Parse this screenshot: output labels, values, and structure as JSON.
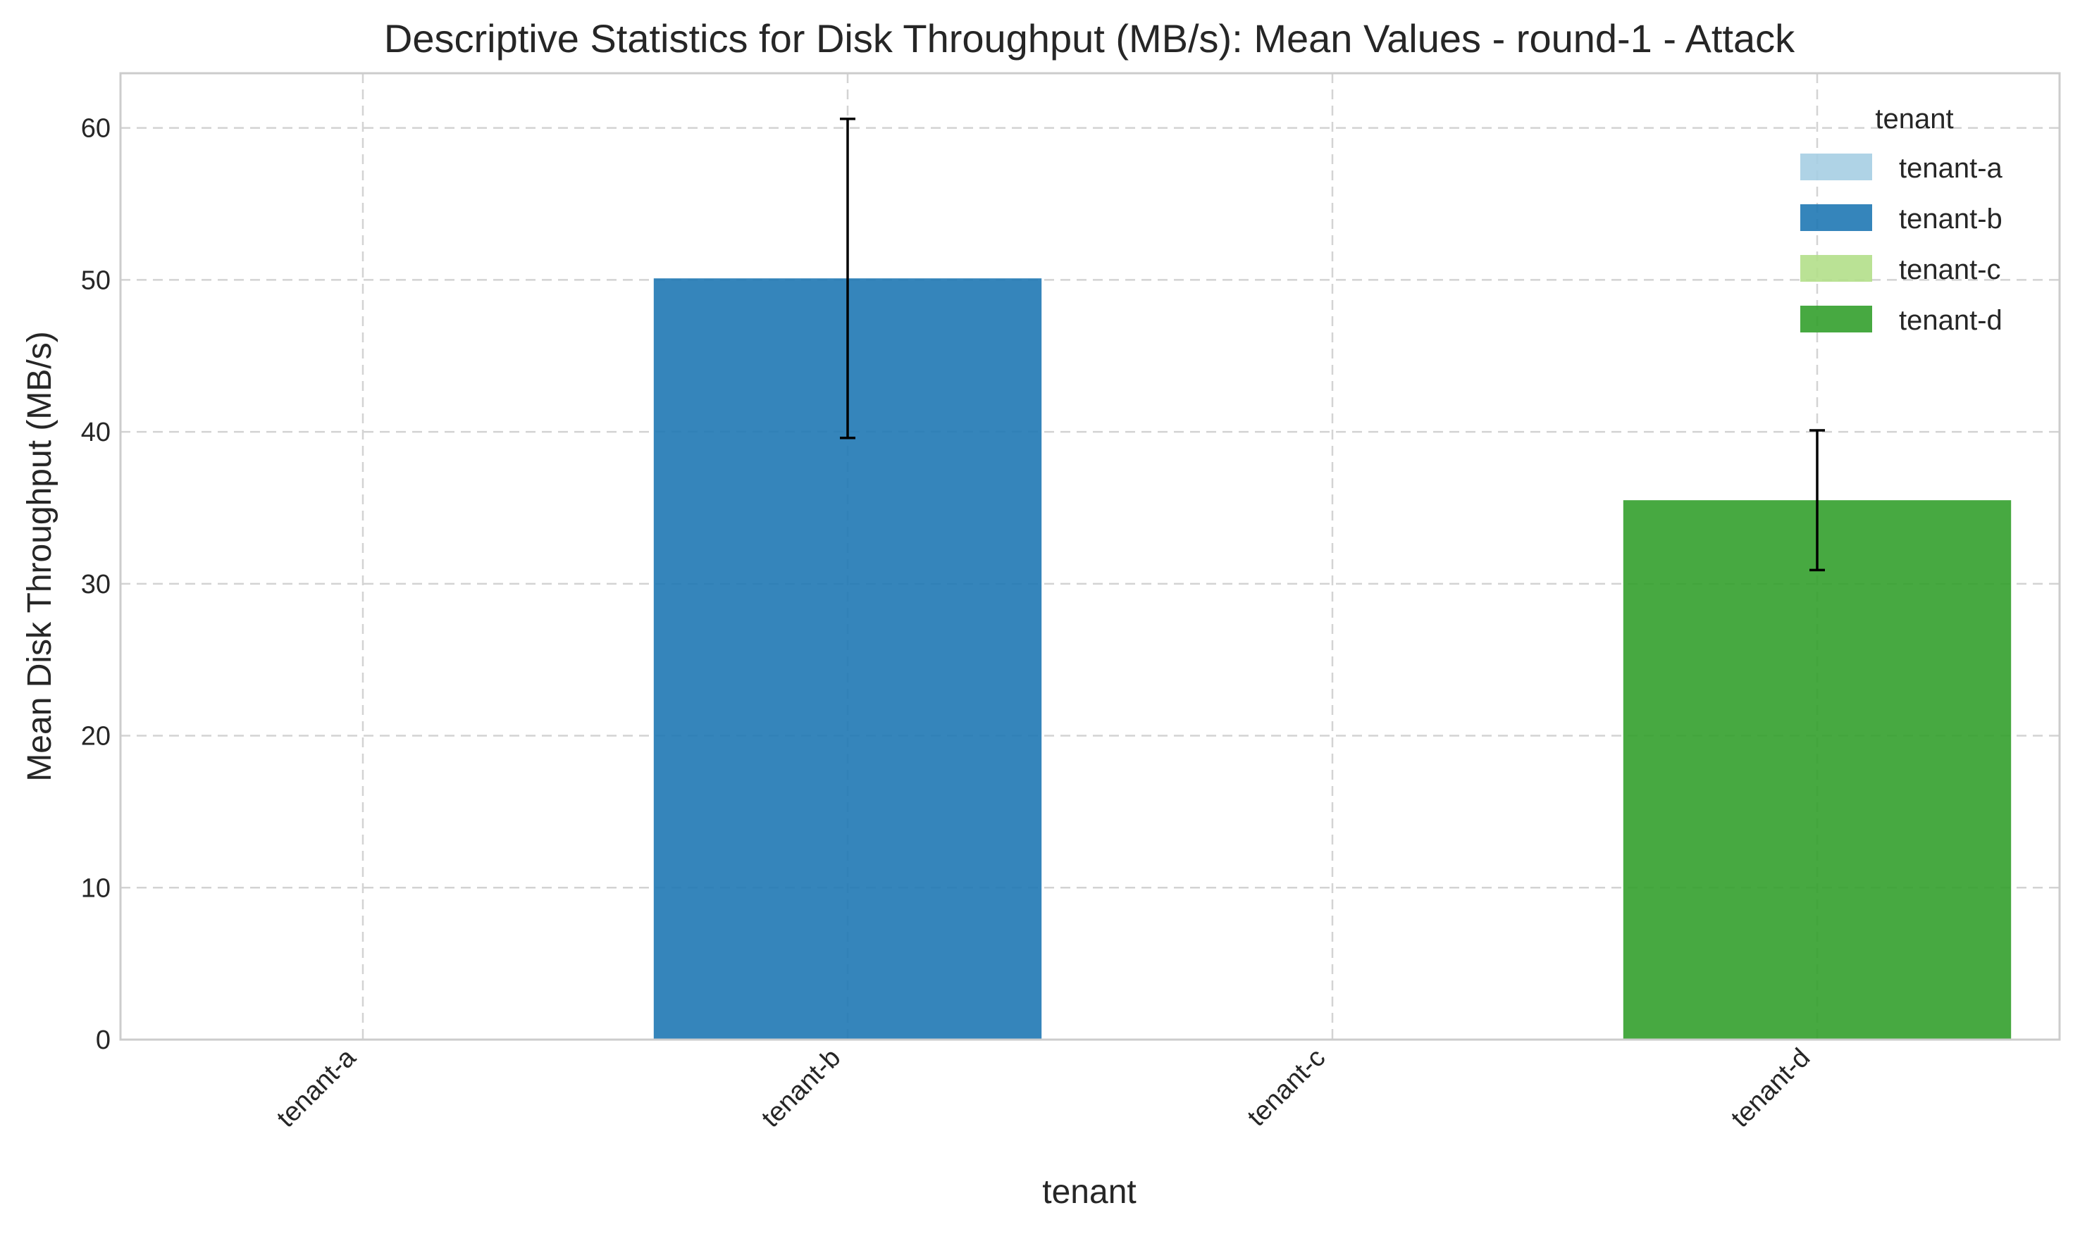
{
  "chart_data": {
    "type": "bar",
    "title": "Descriptive Statistics for Disk Throughput (MB/s): Mean Values - round-1 - Attack",
    "xlabel": "tenant",
    "ylabel": "Mean Disk Throughput (MB/s)",
    "categories": [
      "tenant-a",
      "tenant-b",
      "tenant-c",
      "tenant-d"
    ],
    "values": [
      0,
      50.1,
      0,
      35.5
    ],
    "error": [
      0,
      10.5,
      0,
      4.6
    ],
    "colors": [
      "#a6cee3",
      "#1f78b4",
      "#b2df8a",
      "#33a02c"
    ],
    "ylim": [
      0,
      63.6
    ],
    "yticks": [
      0,
      10,
      20,
      30,
      40,
      50,
      60
    ],
    "grid": true,
    "legend": {
      "title": "tenant",
      "placement": "top-right",
      "entries": [
        "tenant-a",
        "tenant-b",
        "tenant-c",
        "tenant-d"
      ]
    }
  }
}
